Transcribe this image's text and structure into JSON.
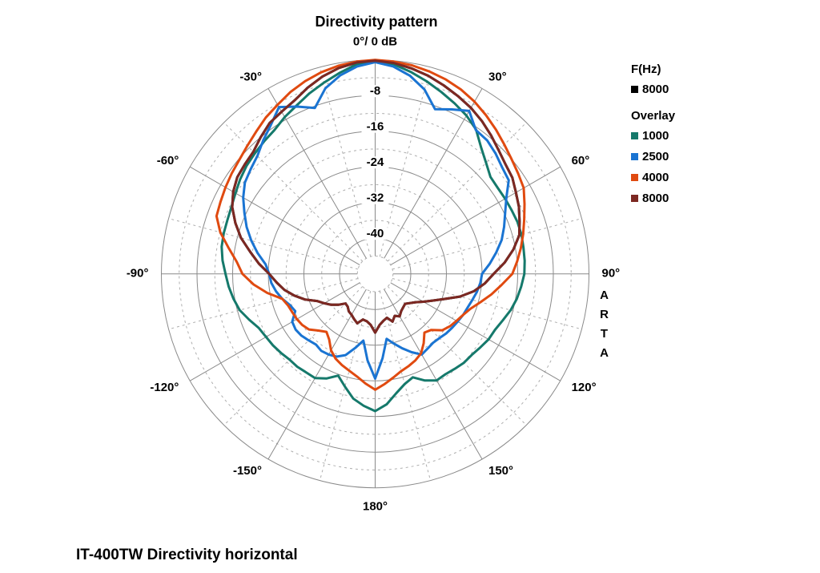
{
  "title": "Directivity pattern",
  "caption": "IT-400TW Directivity horizontal",
  "watermark": "ARTA",
  "legend": {
    "freq_label": "F(Hz)",
    "freq_items": [
      {
        "label": "8000",
        "color": "#000000"
      }
    ],
    "overlay_label": "Overlay",
    "overlay_items": [
      {
        "label": "1000",
        "color": "#15796b"
      },
      {
        "label": "2500",
        "color": "#1a74d2"
      },
      {
        "label": "4000",
        "color": "#e04a10"
      },
      {
        "label": "8000",
        "color": "#7c2822"
      }
    ]
  },
  "chart_data": {
    "type": "line",
    "subtype": "polar-directivity",
    "title": "Directivity pattern",
    "unit": "dB",
    "angle_unit": "deg",
    "center": [
      468.5,
      341.7
    ],
    "radius": 267,
    "db_min": -48,
    "solid_circle_step": 8,
    "dashed_circle_dbs": [
      -4,
      -12,
      -20,
      -28,
      -36,
      -44
    ],
    "solid_circle_dbs": [
      0,
      -8,
      -16,
      -24,
      -32,
      -40
    ],
    "radial_solid_step_deg": 30,
    "radial_dashed_step_deg": 15,
    "db_ticks": [
      -8,
      -16,
      -24,
      -32,
      -40
    ],
    "zero_label": "0°/ 0 dB",
    "angle_ticks": [
      {
        "angle": 0,
        "label": "0°/ 0 dB"
      },
      {
        "angle": -30,
        "label": "-30°"
      },
      {
        "angle": 30,
        "label": "30°"
      },
      {
        "angle": -60,
        "label": "-60°"
      },
      {
        "angle": 60,
        "label": "60°"
      },
      {
        "angle": -90,
        "label": "-90°"
      },
      {
        "angle": 90,
        "label": "90°"
      },
      {
        "angle": -120,
        "label": "-120°"
      },
      {
        "angle": 120,
        "label": "120°"
      },
      {
        "angle": -150,
        "label": "-150°"
      },
      {
        "angle": 150,
        "label": "150°"
      },
      {
        "angle": 180,
        "label": "180°"
      }
    ],
    "angle_start": -180,
    "angle_step": 5,
    "grid_colors": {
      "solid": "#8a8a8a",
      "dashed": "#aeaeae"
    },
    "series": [
      {
        "name": "8000",
        "group": "F(Hz)",
        "color": "#000000",
        "values_from": "8000"
      },
      {
        "name": "1000",
        "group": "Overlay",
        "color": "#15796b",
        "values": [
          -17.2,
          -18.3,
          -19.6,
          -21.8,
          -23.7,
          -22.1,
          -21.0,
          -21.0,
          -20.8,
          -20.8,
          -20.4,
          -20.0,
          -19.7,
          -19.2,
          -17.9,
          -16.5,
          -15.7,
          -15.0,
          -14.4,
          -13.6,
          -13.0,
          -12.8,
          -12.7,
          -12.4,
          -11.8,
          -11.0,
          -10.3,
          -9.8,
          -9.2,
          -8.6,
          -7.4,
          -6.3,
          -4.9,
          -3.6,
          -2.2,
          -0.8,
          -0.2,
          -0.8,
          -2.0,
          -3.3,
          -4.6,
          -5.8,
          -7.0,
          -8.5,
          -11.0,
          -12.8,
          -14.2,
          -14.4,
          -14.3,
          -14.2,
          -14.0,
          -14.0,
          -14.2,
          -14.3,
          -14.5,
          -15.1,
          -15.7,
          -16.5,
          -17.5,
          -18.3,
          -18.6,
          -19.2,
          -19.7,
          -19.8,
          -20.2,
          -20.5,
          -20.4,
          -21.6,
          -23.3,
          -22.4,
          -20.8,
          -18.6,
          -17.2
        ]
      },
      {
        "name": "2500",
        "group": "Overlay",
        "color": "#1a74d2",
        "values": [
          -24.5,
          -28.5,
          -32.8,
          -30.8,
          -28.6,
          -27.5,
          -27.1,
          -26.9,
          -27.3,
          -26.9,
          -26.4,
          -26.2,
          -26.5,
          -28.2,
          -27.6,
          -26.4,
          -25.4,
          -24.6,
          -24.2,
          -23.3,
          -21.2,
          -19.2,
          -17.3,
          -15.6,
          -13.8,
          -12.3,
          -11.5,
          -10.6,
          -8.9,
          -7.2,
          -4.8,
          -6.6,
          -8.4,
          -4.9,
          -2.8,
          -1.3,
          -0.5,
          -1.3,
          -2.9,
          -5.2,
          -8.7,
          -7.3,
          -5.8,
          -8.6,
          -8.9,
          -9.8,
          -10.8,
          -11.4,
          -14.0,
          -15.8,
          -17.2,
          -18.6,
          -20.4,
          -22.2,
          -24.0,
          -24.3,
          -24.8,
          -25.4,
          -25.9,
          -26.2,
          -26.6,
          -26.9,
          -27.2,
          -27.6,
          -27.8,
          -27.5,
          -27.1,
          -28.6,
          -30.2,
          -31.8,
          -33.2,
          -29.0,
          -24.5
        ]
      },
      {
        "name": "4000",
        "group": "Overlay",
        "color": "#e04a10",
        "values": [
          -22.0,
          -23.3,
          -24.6,
          -25.5,
          -26.2,
          -27.0,
          -28.2,
          -30.0,
          -31.0,
          -30.0,
          -28.6,
          -28.0,
          -27.7,
          -27.5,
          -27.2,
          -26.4,
          -23.4,
          -20.6,
          -18.2,
          -16.8,
          -14.6,
          -12.0,
          -10.1,
          -9.7,
          -9.2,
          -8.7,
          -8.2,
          -7.4,
          -6.4,
          -5.2,
          -4.2,
          -3.0,
          -2.0,
          -1.2,
          -0.6,
          -0.2,
          0.0,
          -0.2,
          -0.5,
          -1.0,
          -1.6,
          -2.4,
          -3.4,
          -4.6,
          -5.8,
          -7.0,
          -8.0,
          -8.8,
          -9.5,
          -11.0,
          -12.4,
          -13.6,
          -14.8,
          -16.0,
          -17.2,
          -19.5,
          -21.5,
          -23.5,
          -25.2,
          -26.2,
          -26.9,
          -27.5,
          -28.3,
          -30.2,
          -30.8,
          -29.0,
          -27.4,
          -26.6,
          -26.0,
          -25.4,
          -24.4,
          -23.2,
          -22.0
        ]
      },
      {
        "name": "8000",
        "group": "Overlay",
        "color": "#7c2822",
        "values": [
          -34.8,
          -36.5,
          -37.2,
          -37.4,
          -36.2,
          -36.8,
          -37.4,
          -37.7,
          -38.4,
          -38.6,
          -37.2,
          -35.9,
          -34.8,
          -33.6,
          -31.2,
          -29.2,
          -27.3,
          -25.8,
          -24.2,
          -21.8,
          -19.5,
          -16.8,
          -14.6,
          -12.6,
          -11.2,
          -10.2,
          -9.8,
          -9.3,
          -8.0,
          -6.7,
          -6.0,
          -5.1,
          -3.6,
          -2.2,
          -1.1,
          -0.4,
          -0.2,
          -0.5,
          -1.2,
          -2.0,
          -3.0,
          -4.0,
          -5.0,
          -6.2,
          -7.5,
          -8.8,
          -9.8,
          -10.4,
          -11.5,
          -12.4,
          -13.5,
          -14.5,
          -16.5,
          -18.8,
          -21.4,
          -23.3,
          -25.5,
          -28.3,
          -31.5,
          -33.8,
          -35.5,
          -36.9,
          -37.8,
          -38.5,
          -38.2,
          -37.8,
          -37.0,
          -37.6,
          -36.6,
          -37.8,
          -37.3,
          -36.5,
          -34.8
        ]
      }
    ]
  }
}
